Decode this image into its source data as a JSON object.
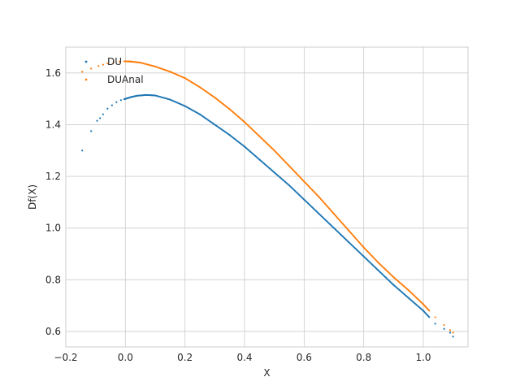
{
  "chart_data": {
    "type": "scatter",
    "title": "",
    "xlabel": "X",
    "ylabel": "Df(X)",
    "xlim": [
      -0.2,
      1.15
    ],
    "ylim": [
      0.54,
      1.7
    ],
    "xticks": [
      -0.2,
      0.0,
      0.2,
      0.4,
      0.6,
      0.8,
      1.0
    ],
    "xtick_labels": [
      "−0.2",
      "0.0",
      "0.2",
      "0.4",
      "0.6",
      "0.8",
      "1.0"
    ],
    "yticks": [
      0.6,
      0.8,
      1.0,
      1.2,
      1.4,
      1.6
    ],
    "ytick_labels": [
      "0.6",
      "0.8",
      "1.0",
      "1.2",
      "1.4",
      "1.6"
    ],
    "grid": true,
    "legend_position": "top-left",
    "series": [
      {
        "name": "DU",
        "color": "#1f77b4",
        "x": [
          -0.145,
          -0.115,
          -0.095,
          -0.085,
          -0.075,
          -0.06,
          -0.045,
          -0.03,
          -0.015,
          0.0,
          0.02,
          0.04,
          0.07,
          0.1,
          0.15,
          0.2,
          0.25,
          0.3,
          0.35,
          0.4,
          0.45,
          0.5,
          0.55,
          0.6,
          0.65,
          0.7,
          0.75,
          0.8,
          0.85,
          0.9,
          0.95,
          1.0,
          1.04,
          1.07,
          1.09,
          1.1
        ],
        "y": [
          1.3,
          1.375,
          1.415,
          1.425,
          1.44,
          1.462,
          1.475,
          1.487,
          1.495,
          1.5,
          1.507,
          1.512,
          1.515,
          1.513,
          1.497,
          1.472,
          1.44,
          1.4,
          1.36,
          1.315,
          1.265,
          1.215,
          1.165,
          1.11,
          1.055,
          1.0,
          0.945,
          0.89,
          0.835,
          0.78,
          0.73,
          0.68,
          0.63,
          0.61,
          0.595,
          0.58
        ]
      },
      {
        "name": "DUAnal",
        "color": "#ff7f0e",
        "x": [
          -0.145,
          -0.115,
          -0.09,
          -0.075,
          -0.06,
          -0.04,
          -0.02,
          0.0,
          0.02,
          0.05,
          0.1,
          0.15,
          0.2,
          0.25,
          0.3,
          0.35,
          0.4,
          0.45,
          0.5,
          0.55,
          0.6,
          0.65,
          0.7,
          0.75,
          0.8,
          0.85,
          0.9,
          0.95,
          1.0,
          1.04,
          1.07,
          1.09,
          1.1
        ],
        "y": [
          1.605,
          1.617,
          1.627,
          1.632,
          1.637,
          1.641,
          1.644,
          1.645,
          1.644,
          1.64,
          1.625,
          1.605,
          1.58,
          1.545,
          1.505,
          1.46,
          1.41,
          1.355,
          1.3,
          1.24,
          1.18,
          1.12,
          1.055,
          0.99,
          0.925,
          0.865,
          0.81,
          0.76,
          0.705,
          0.655,
          0.625,
          0.605,
          0.595
        ]
      }
    ]
  }
}
